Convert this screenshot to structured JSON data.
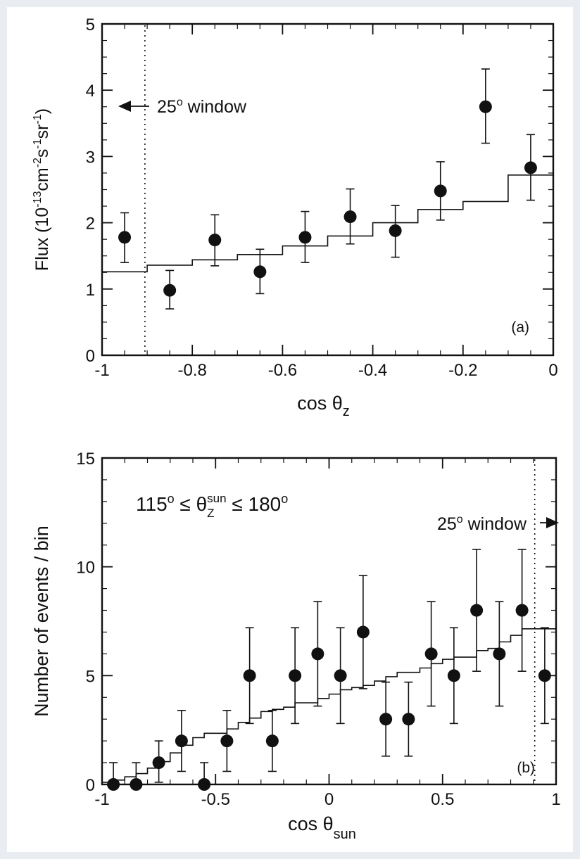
{
  "chart_data": [
    {
      "type": "scatter",
      "panel_label": "(a)",
      "xlabel_main": "cos θ",
      "xlabel_sub": "z",
      "ylabel_main": "Flux (10",
      "ylabel_exp1": "-13",
      "ylabel_unit1": "cm",
      "ylabel_exp2": "-2",
      "ylabel_unit2": "s",
      "ylabel_exp3": "-1",
      "ylabel_unit3": "sr",
      "ylabel_exp4": "-1",
      "ylabel_close": ")",
      "xlim": [
        -1,
        0
      ],
      "ylim": [
        0,
        5
      ],
      "xticks": [
        {
          "value": -1,
          "label": "-1"
        },
        {
          "value": -0.8,
          "label": "-0.8"
        },
        {
          "value": -0.6,
          "label": "-0.6"
        },
        {
          "value": -0.4,
          "label": "-0.4"
        },
        {
          "value": -0.2,
          "label": "-0.2"
        },
        {
          "value": 0,
          "label": "0"
        }
      ],
      "yticks": [
        {
          "value": 0,
          "label": "0"
        },
        {
          "value": 1,
          "label": "1"
        },
        {
          "value": 2,
          "label": "2"
        },
        {
          "value": 3,
          "label": "3"
        },
        {
          "value": 4,
          "label": "4"
        },
        {
          "value": 5,
          "label": "5"
        }
      ],
      "x_minor_step": 0.05,
      "y_minor_step": 0.25,
      "points": [
        {
          "x": -0.95,
          "y": 1.78,
          "lo": 1.4,
          "hi": 2.15
        },
        {
          "x": -0.85,
          "y": 0.98,
          "lo": 0.7,
          "hi": 1.28
        },
        {
          "x": -0.75,
          "y": 1.74,
          "lo": 1.35,
          "hi": 2.12
        },
        {
          "x": -0.65,
          "y": 1.26,
          "lo": 0.93,
          "hi": 1.6
        },
        {
          "x": -0.55,
          "y": 1.78,
          "lo": 1.4,
          "hi": 2.17
        },
        {
          "x": -0.45,
          "y": 2.09,
          "lo": 1.68,
          "hi": 2.51
        },
        {
          "x": -0.35,
          "y": 1.88,
          "lo": 1.48,
          "hi": 2.26
        },
        {
          "x": -0.25,
          "y": 2.48,
          "lo": 2.04,
          "hi": 2.92
        },
        {
          "x": -0.15,
          "y": 3.75,
          "lo": 3.2,
          "hi": 4.32
        },
        {
          "x": -0.05,
          "y": 2.83,
          "lo": 2.34,
          "hi": 3.33
        }
      ],
      "step_expectation": {
        "edges": [
          -1,
          -0.9,
          -0.8,
          -0.7,
          -0.6,
          -0.5,
          -0.4,
          -0.3,
          -0.2,
          -0.1,
          0
        ],
        "values": [
          1.26,
          1.36,
          1.44,
          1.52,
          1.65,
          1.8,
          2.0,
          2.2,
          2.32,
          2.72,
          3.2
        ]
      },
      "window_line_x": -0.905,
      "window_label": "25",
      "window_label_deg": "o",
      "window_label_rest": " window",
      "window_arrow": "left"
    },
    {
      "type": "scatter",
      "panel_label": "(b)",
      "xlabel_main": "cos θ",
      "xlabel_sub": "sun",
      "ylabel": "Number of events / bin",
      "annotation_a": "115",
      "annotation_deg1": "o",
      "annotation_b": " ≤ θ",
      "annotation_sup": "sun",
      "annotation_sub": "Z",
      "annotation_c": " ≤ 180",
      "annotation_deg2": "o",
      "xlim": [
        -1,
        1
      ],
      "ylim": [
        0,
        15
      ],
      "xticks": [
        {
          "value": -1,
          "label": "-1"
        },
        {
          "value": -0.5,
          "label": "-0.5"
        },
        {
          "value": 0,
          "label": "0"
        },
        {
          "value": 0.5,
          "label": "0.5"
        },
        {
          "value": 1,
          "label": "1"
        }
      ],
      "yticks": [
        {
          "value": 0,
          "label": "0"
        },
        {
          "value": 5,
          "label": "5"
        },
        {
          "value": 10,
          "label": "10"
        },
        {
          "value": 15,
          "label": "15"
        }
      ],
      "x_minor_step": 0.1,
      "y_minor_step": 1,
      "points": [
        {
          "x": -0.95,
          "y": 0,
          "lo": 0,
          "hi": 1.0
        },
        {
          "x": -0.85,
          "y": 0,
          "lo": 0,
          "hi": 1.0
        },
        {
          "x": -0.75,
          "y": 1,
          "lo": 0.1,
          "hi": 2.0
        },
        {
          "x": -0.65,
          "y": 2,
          "lo": 0.6,
          "hi": 3.4
        },
        {
          "x": -0.55,
          "y": 0,
          "lo": 0,
          "hi": 1.0
        },
        {
          "x": -0.45,
          "y": 2,
          "lo": 0.6,
          "hi": 3.4
        },
        {
          "x": -0.35,
          "y": 5,
          "lo": 2.8,
          "hi": 7.2
        },
        {
          "x": -0.25,
          "y": 2,
          "lo": 0.6,
          "hi": 3.4
        },
        {
          "x": -0.15,
          "y": 5,
          "lo": 2.8,
          "hi": 7.2
        },
        {
          "x": -0.05,
          "y": 6,
          "lo": 3.6,
          "hi": 8.4
        },
        {
          "x": 0.05,
          "y": 5,
          "lo": 2.8,
          "hi": 7.2
        },
        {
          "x": 0.15,
          "y": 7,
          "lo": 4.4,
          "hi": 9.6
        },
        {
          "x": 0.25,
          "y": 3,
          "lo": 1.3,
          "hi": 4.7
        },
        {
          "x": 0.35,
          "y": 3,
          "lo": 1.3,
          "hi": 4.7
        },
        {
          "x": 0.45,
          "y": 6,
          "lo": 3.6,
          "hi": 8.4
        },
        {
          "x": 0.55,
          "y": 5,
          "lo": 2.8,
          "hi": 7.2
        },
        {
          "x": 0.65,
          "y": 8,
          "lo": 5.2,
          "hi": 10.8
        },
        {
          "x": 0.75,
          "y": 6,
          "lo": 3.6,
          "hi": 8.4
        },
        {
          "x": 0.85,
          "y": 8,
          "lo": 5.2,
          "hi": 10.8
        },
        {
          "x": 0.95,
          "y": 5,
          "lo": 2.8,
          "hi": 7.2
        }
      ],
      "step_expectation": {
        "edges": [
          -1,
          -0.95,
          -0.9,
          -0.85,
          -0.8,
          -0.75,
          -0.7,
          -0.65,
          -0.6,
          -0.55,
          -0.5,
          -0.45,
          -0.4,
          -0.35,
          -0.3,
          -0.25,
          -0.2,
          -0.15,
          -0.1,
          -0.05,
          0,
          0.05,
          0.1,
          0.15,
          0.2,
          0.25,
          0.3,
          0.35,
          0.4,
          0.45,
          0.5,
          0.55,
          0.6,
          0.65,
          0.7,
          0.75,
          0.8,
          0.85,
          0.9,
          0.95,
          1
        ],
        "values": [
          0.1,
          0.2,
          0.35,
          0.5,
          0.75,
          1.05,
          1.45,
          1.8,
          2.15,
          2.35,
          2.35,
          2.55,
          2.85,
          3.05,
          3.35,
          3.45,
          3.55,
          3.75,
          3.75,
          3.95,
          4.15,
          4.35,
          4.45,
          4.55,
          4.75,
          4.95,
          5.15,
          5.15,
          5.35,
          5.55,
          5.75,
          5.85,
          5.85,
          6.15,
          6.25,
          6.55,
          6.85,
          7.15,
          7.15,
          7.15,
          7.1
        ]
      },
      "window_line_x": 0.906,
      "window_label": "25",
      "window_label_deg": "o",
      "window_label_rest": " window",
      "window_arrow": "right"
    }
  ]
}
